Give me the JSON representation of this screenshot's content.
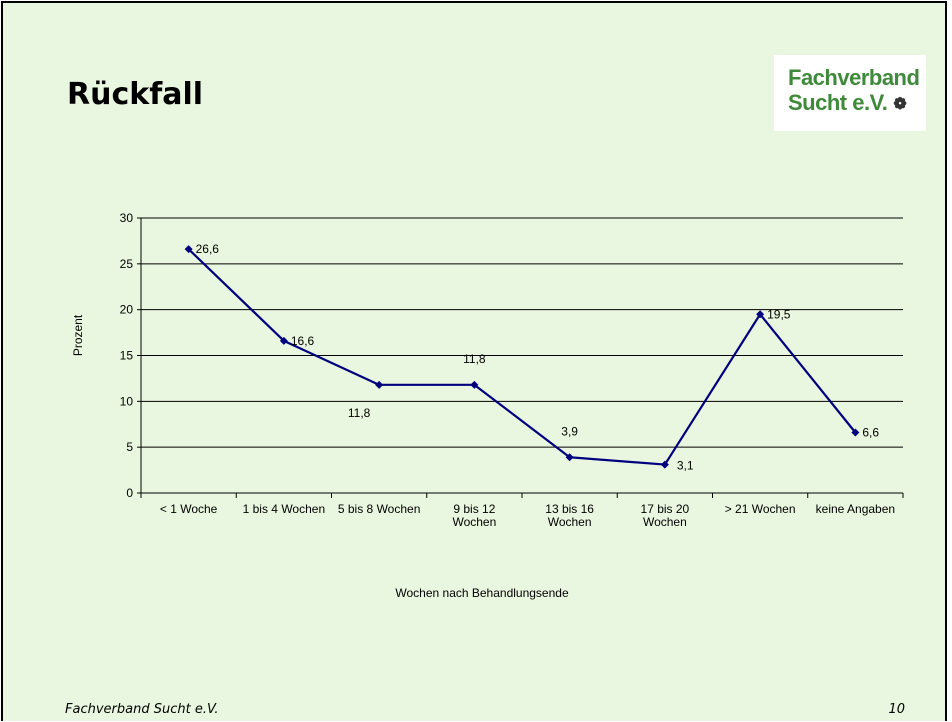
{
  "slide": {
    "title": "Rückfall",
    "logo_line1": "Fachverband",
    "logo_line2": "Sucht e.V.",
    "logo_icon": "flower-icon",
    "footer_left": "Fachverband Sucht e.V.",
    "page_number": "10"
  },
  "colors": {
    "background": "#eaf7e0",
    "series_line": "#00007f",
    "logo_green": "#3f8a3a"
  },
  "chart_data": {
    "type": "line",
    "title": "",
    "xlabel": "Wochen nach Behandlungsende",
    "ylabel": "Prozent",
    "categories": [
      [
        "< 1 Woche"
      ],
      [
        "1 bis 4 Wochen"
      ],
      [
        "5 bis 8 Wochen"
      ],
      [
        "9 bis 12",
        "Wochen"
      ],
      [
        "13 bis 16",
        "Wochen"
      ],
      [
        "17 bis 20",
        "Wochen"
      ],
      [
        "> 21 Wochen"
      ],
      [
        "keine Angaben"
      ]
    ],
    "values": [
      26.6,
      16.6,
      11.8,
      11.8,
      3.9,
      3.1,
      19.5,
      6.6
    ],
    "value_labels": [
      "26,6",
      "16,6",
      "11,8",
      "11,8",
      "3,9",
      "3,1",
      "19,5",
      "6,6"
    ],
    "label_positions": [
      "right",
      "right",
      "below",
      "above",
      "above",
      "right",
      "right",
      "right"
    ],
    "ylim": [
      0,
      30
    ],
    "yticks": [
      "0",
      "5",
      "10",
      "15",
      "20",
      "25",
      "30"
    ],
    "grid": true,
    "legend": "none"
  }
}
